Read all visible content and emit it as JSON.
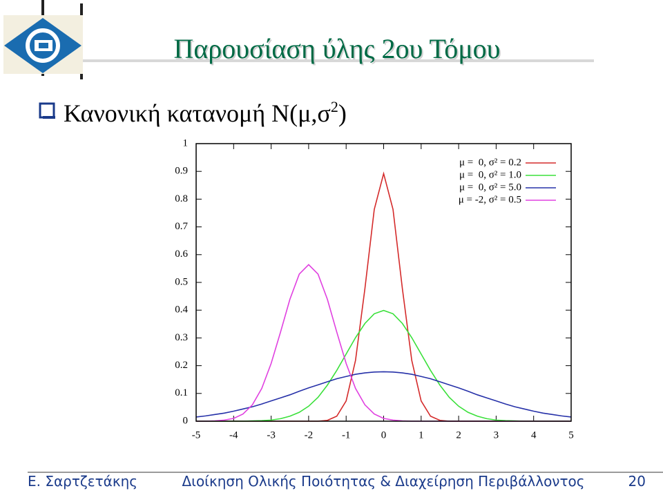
{
  "header": {
    "title": "Παρουσίαση ύλης 2ου Τόμου"
  },
  "bullet": {
    "text": "Κανονική κατανομή Ν(μ,σ",
    "superscript": "2",
    "text_end": ")"
  },
  "footer": {
    "author": "Ε. Σαρτζετάκης",
    "course": "Διοίκηση Ολικής Ποιότητας & Διαχείρηση Περιβάλλοντος",
    "page": "20"
  },
  "chart_data": {
    "type": "line",
    "legend": "upper right",
    "x": [
      -5,
      -4.75,
      -4.5,
      -4.25,
      -4,
      -3.75,
      -3.5,
      -3.25,
      -3,
      -2.75,
      -2.5,
      -2.25,
      -2,
      -1.75,
      -1.5,
      -1.25,
      -1,
      -0.75,
      -0.5,
      -0.25,
      0,
      0.25,
      0.5,
      0.75,
      1,
      1.25,
      1.5,
      1.75,
      2,
      2.25,
      2.5,
      2.75,
      3,
      3.25,
      3.5,
      3.75,
      4,
      4.25,
      4.5,
      4.75,
      5
    ],
    "xlim": [
      -5,
      5
    ],
    "xticks": [
      -5,
      -4,
      -3,
      -2,
      -1,
      0,
      1,
      2,
      3,
      4,
      5
    ],
    "ylim": [
      0,
      1
    ],
    "yticks": [
      0,
      0.1,
      0.2,
      0.3,
      0.4,
      0.5,
      0.6,
      0.7,
      0.8,
      0.9,
      1
    ],
    "series": [
      {
        "name": "μ =  0, σ² = 0.2",
        "color": "#d42a2a",
        "values": [
          0,
          0,
          0,
          0,
          0,
          0,
          0,
          0,
          0,
          0,
          0,
          0,
          0,
          0,
          0.003,
          0.018,
          0.073,
          0.219,
          0.477,
          0.763,
          0.892,
          0.763,
          0.477,
          0.219,
          0.073,
          0.018,
          0.003,
          0,
          0,
          0,
          0,
          0,
          0,
          0,
          0,
          0,
          0,
          0,
          0,
          0,
          0
        ]
      },
      {
        "name": "μ =  0, σ² = 1.0",
        "color": "#3ae03a",
        "values": [
          0,
          0,
          0,
          0,
          0,
          0,
          0.001,
          0.002,
          0.004,
          0.009,
          0.018,
          0.032,
          0.054,
          0.086,
          0.13,
          0.183,
          0.242,
          0.301,
          0.352,
          0.387,
          0.399,
          0.387,
          0.352,
          0.301,
          0.242,
          0.183,
          0.13,
          0.086,
          0.054,
          0.032,
          0.018,
          0.009,
          0.004,
          0.002,
          0.001,
          0,
          0,
          0,
          0,
          0,
          0
        ]
      },
      {
        "name": "μ =  0, σ² = 5.0",
        "color": "#2530a8",
        "values": [
          0.015,
          0.019,
          0.024,
          0.029,
          0.036,
          0.044,
          0.052,
          0.062,
          0.073,
          0.084,
          0.095,
          0.108,
          0.12,
          0.131,
          0.142,
          0.153,
          0.161,
          0.169,
          0.174,
          0.177,
          0.178,
          0.177,
          0.174,
          0.169,
          0.161,
          0.153,
          0.142,
          0.131,
          0.12,
          0.108,
          0.095,
          0.084,
          0.073,
          0.062,
          0.052,
          0.044,
          0.036,
          0.029,
          0.024,
          0.019,
          0.015
        ]
      },
      {
        "name": "μ = -2, σ² = 0.5",
        "color": "#e040e0",
        "values": [
          0,
          0,
          0.001,
          0.004,
          0.01,
          0.026,
          0.059,
          0.118,
          0.208,
          0.321,
          0.439,
          0.53,
          0.564,
          0.53,
          0.439,
          0.321,
          0.208,
          0.118,
          0.059,
          0.026,
          0.01,
          0.004,
          0.001,
          0,
          0,
          0,
          0,
          0,
          0,
          0,
          0,
          0,
          0,
          0,
          0,
          0,
          0,
          0,
          0,
          0,
          0
        ]
      }
    ]
  }
}
